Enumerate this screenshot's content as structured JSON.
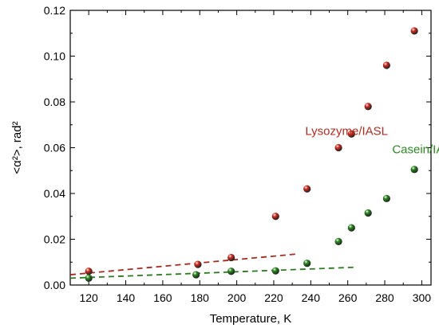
{
  "chart_data": {
    "type": "scatter",
    "xlabel": "Temperature, K",
    "ylabel": "<α²>, rad²",
    "xlim": [
      110,
      305
    ],
    "ylim": [
      0.0,
      0.12
    ],
    "x_ticks": [
      120,
      140,
      160,
      180,
      200,
      220,
      240,
      260,
      280,
      300
    ],
    "y_ticks": [
      0.0,
      0.02,
      0.04,
      0.06,
      0.08,
      0.1,
      0.12
    ],
    "y_tick_labels": [
      "0.00",
      "0.02",
      "0.04",
      "0.06",
      "0.08",
      "0.10",
      "0.12"
    ],
    "grid": false,
    "series": [
      {
        "name": "Lysozyme/IASL",
        "color": "#d42a1e",
        "x": [
          120,
          179,
          197,
          221,
          238,
          255,
          262,
          271,
          281,
          296
        ],
        "y": [
          0.006,
          0.009,
          0.012,
          0.03,
          0.042,
          0.06,
          0.066,
          0.078,
          0.096,
          0.111
        ],
        "trend": {
          "x": [
            110,
            232
          ],
          "y": [
            0.0045,
            0.0135
          ],
          "color": "#a8281e",
          "style": "dashed"
        }
      },
      {
        "name": "Casein/IASL",
        "color": "#2a8a1e",
        "x": [
          120,
          178,
          197,
          221,
          238,
          255,
          262,
          271,
          281,
          296
        ],
        "y": [
          0.003,
          0.0045,
          0.006,
          0.0062,
          0.0095,
          0.019,
          0.025,
          0.0315,
          0.0378,
          0.0505
        ],
        "trend": {
          "x": [
            110,
            265
          ],
          "y": [
            0.003,
            0.0078
          ],
          "color": "#2a7a1e",
          "style": "dashed"
        }
      }
    ],
    "annotations": [
      {
        "text": "Lysozyme/IASL",
        "x": 237,
        "y": 0.0655,
        "color": "#b22a1e"
      },
      {
        "text": "Casein/IASL",
        "x": 284,
        "y": 0.0575,
        "color": "#2a8a1e"
      }
    ]
  }
}
